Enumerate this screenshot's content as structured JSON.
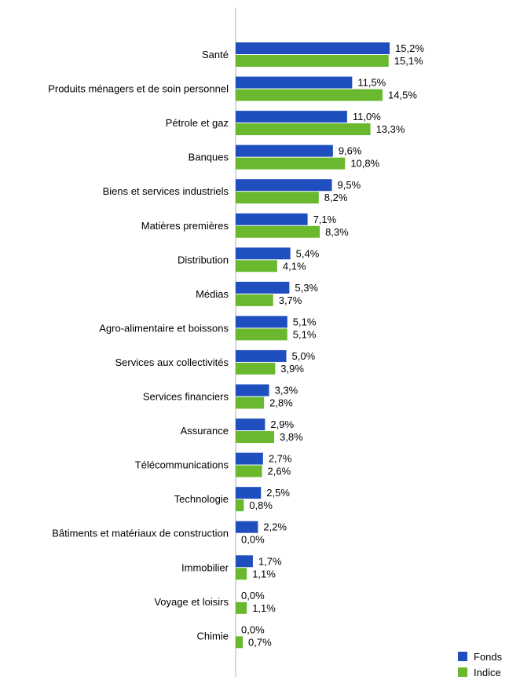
{
  "chart_data": {
    "type": "bar",
    "orientation": "horizontal",
    "categories": [
      "Santé",
      "Produits ménagers et de soin personnel",
      "Pétrole et gaz",
      "Banques",
      "Biens et services industriels",
      "Matières premières",
      "Distribution",
      "Médias",
      "Agro-alimentaire et boissons",
      "Services aux collectivités",
      "Services financiers",
      "Assurance",
      "Télécommunications",
      "Technologie",
      "Bâtiments et matériaux de construction",
      "Immobilier",
      "Voyage et loisirs",
      "Chimie"
    ],
    "series": [
      {
        "name": "Fonds",
        "color": "#1f4fbf",
        "values": [
          15.2,
          11.5,
          11.0,
          9.6,
          9.5,
          7.1,
          5.4,
          5.3,
          5.1,
          5.0,
          3.3,
          2.9,
          2.7,
          2.5,
          2.2,
          1.7,
          0.0,
          0.0
        ],
        "labels": [
          "15,2%",
          "11,5%",
          "11,0%",
          "9,6%",
          "9,5%",
          "7,1%",
          "5,4%",
          "5,3%",
          "5,1%",
          "5,0%",
          "3,3%",
          "2,9%",
          "2,7%",
          "2,5%",
          "2,2%",
          "1,7%",
          "0,0%",
          "0,0%"
        ]
      },
      {
        "name": "Indice",
        "color": "#6ab82e",
        "values": [
          15.1,
          14.5,
          13.3,
          10.8,
          8.2,
          8.3,
          4.1,
          3.7,
          5.1,
          3.9,
          2.8,
          3.8,
          2.6,
          0.8,
          0.0,
          1.1,
          1.1,
          0.7
        ],
        "labels": [
          "15,1%",
          "14,5%",
          "13,3%",
          "10,8%",
          "8,2%",
          "8,3%",
          "4,1%",
          "3,7%",
          "5,1%",
          "3,9%",
          "2,8%",
          "3,8%",
          "2,6%",
          "0,8%",
          "0,0%",
          "1,1%",
          "1,1%",
          "0,7%"
        ]
      }
    ],
    "legend_position": "bottom-right",
    "grid": false
  }
}
